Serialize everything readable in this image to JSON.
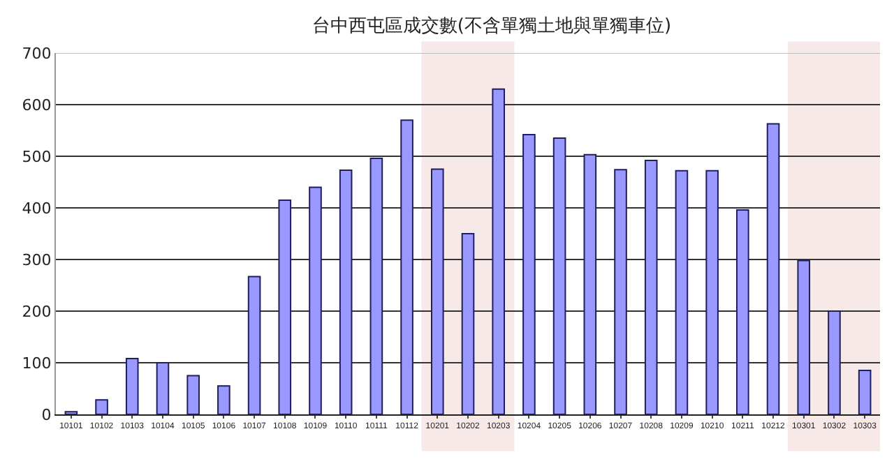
{
  "chart_data": {
    "type": "bar",
    "title": "台中西屯區成交數(不含單獨土地與單獨車位)",
    "categories": [
      "10101",
      "10102",
      "10103",
      "10104",
      "10105",
      "10106",
      "10107",
      "10108",
      "10109",
      "10110",
      "10111",
      "10112",
      "10201",
      "10202",
      "10203",
      "10204",
      "10205",
      "10206",
      "10207",
      "10208",
      "10209",
      "10210",
      "10211",
      "10212",
      "10301",
      "10302",
      "10303"
    ],
    "values": [
      5,
      28,
      108,
      100,
      75,
      55,
      267,
      415,
      440,
      473,
      496,
      570,
      475,
      350,
      630,
      542,
      535,
      503,
      474,
      492,
      472,
      472,
      396,
      563,
      298,
      200,
      85
    ],
    "color": "#9999ff",
    "ylim": [
      0,
      700
    ],
    "yticks": [
      0,
      100,
      200,
      300,
      400,
      500,
      600,
      700
    ],
    "grid": "y",
    "bands": [
      {
        "axis": "x",
        "from": "10201",
        "to": "10203",
        "label": null,
        "color": "#c0504d"
      },
      {
        "axis": "x",
        "from": "10301",
        "to": "10303",
        "label": null,
        "color": "#c0504d"
      }
    ]
  }
}
